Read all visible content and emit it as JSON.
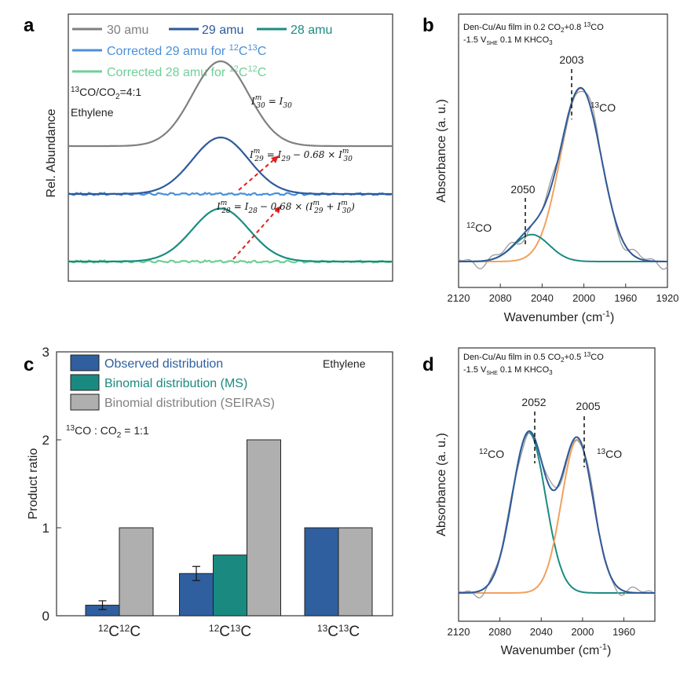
{
  "colors": {
    "gray": "#808080",
    "navy": "#2E5A9C",
    "teal": "#1B8C80",
    "lightblue": "#4A90D9",
    "lightgreen": "#6FCF97",
    "orange": "#F2A15C",
    "darkgreen": "#1E7A3C",
    "red": "#E02020",
    "bar_observed": "#2F5F9E",
    "bar_ms": "#1A8A80",
    "bar_seiras": "#AFAFAF"
  },
  "panel_a": {
    "letter": "a",
    "legend": {
      "amu30": "30 amu",
      "amu29": "29 amu",
      "amu28": "28 amu",
      "corr29": "Corrected 29 amu for ",
      "corr29_iso": "12C13C",
      "corr28": "Corrected 28 amu for ",
      "corr28_iso": "12C12C"
    },
    "ratio_text": "13CO/CO2=4:1",
    "ratio_sup": "13",
    "ratio_main": "CO/CO",
    "ratio_sub": "2",
    "ratio_tail": "=4:1",
    "product": "Ethylene",
    "ylabel": "Rel. Abundance",
    "eq30": "Iₘ₃₀ = I₃₀",
    "eq30_lhs": "I",
    "eq30_rhs": "= I",
    "eq29": "= I",
    "eq29_tail": "− 0.68 × I",
    "eq28": "= I",
    "eq28_tail": "− 0.68 × (I",
    "eq28_plus": "+ I",
    "eq_sup": "m",
    "sub30": "30",
    "sub29": "29",
    "sub28": "28"
  },
  "panel_b": {
    "letter": "b",
    "title_line1": "Den-Cu/Au film in 0.2 CO",
    "title_line1_sub": "2",
    "title_line1_tail": "+0.8 ",
    "title_line1_sup": "13",
    "title_line1_end": "CO",
    "title_line2_a": "-1.5 V",
    "title_line2_sub": "SHE",
    "title_line2_b": " 0.1 M KHCO",
    "title_line2_sub2": "3",
    "peak1": "2003",
    "peak2": "2050",
    "label_13co_sup": "13",
    "label_13co": "CO",
    "label_12co_sup": "12",
    "label_12co": "CO",
    "ylabel": "Absorbance (a. u.)",
    "xlabel": "Wavenumber (cm",
    "xlabel_sup": "-1",
    "xlabel_end": ")"
  },
  "panel_c": {
    "letter": "c",
    "legend": [
      "Observed distribution",
      "Binomial distribution (MS)",
      "Binomial distribution (SEIRAS)"
    ],
    "product": "Ethylene",
    "ratio_sup": "13",
    "ratio_main": "CO : CO",
    "ratio_sub": "2",
    "ratio_tail": " = 1:1",
    "ylabel": "Product  ratio",
    "cat_labels": [
      {
        "sup1": "12",
        "a": "C",
        "sup2": "12",
        "b": "C"
      },
      {
        "sup1": "12",
        "a": "C",
        "sup2": "13",
        "b": "C"
      },
      {
        "sup1": "13",
        "a": "C",
        "sup2": "13",
        "b": "C"
      }
    ]
  },
  "panel_d": {
    "letter": "d",
    "title_line1": "Den-Cu/Au film in 0.5 CO",
    "title_line1_sub": "2",
    "title_line1_tail": "+0.5 ",
    "title_line1_sup": "13",
    "title_line1_end": "CO",
    "title_line2_a": "-1.5 V",
    "title_line2_sub": "SHE",
    "title_line2_b": " 0.1 M KHCO",
    "title_line2_sub2": "3",
    "peak1": "2052",
    "peak2": "2005",
    "label_12co_sup": "12",
    "label_12co": "CO",
    "label_13co_sup": "13",
    "label_13co": "CO",
    "ylabel": "Absorbance (a. u.)",
    "xlabel": "Wavenumber (cm",
    "xlabel_sup": "-1",
    "xlabel_end": ")"
  },
  "chart_data": [
    {
      "panel": "a",
      "type": "line",
      "title": "",
      "ylabel": "Rel. Abundance",
      "axis_ticks_shown": false,
      "series": [
        {
          "name": "30 amu",
          "peak_height": 0.72,
          "baseline_offset": 2
        },
        {
          "name": "29 amu",
          "peak_height": 0.48,
          "baseline_offset": 1
        },
        {
          "name": "28 amu",
          "peak_height": 0.45,
          "baseline_offset": 0
        },
        {
          "name": "Corrected 29 amu for 12C13C",
          "peak_height": 0.0,
          "baseline_offset": 1
        },
        {
          "name": "Corrected 28 amu for 12C12C",
          "peak_height": 0.0,
          "baseline_offset": 0
        }
      ]
    },
    {
      "panel": "b",
      "type": "line",
      "xlabel": "Wavenumber (cm-1)",
      "ylabel": "Absorbance (a. u.)",
      "xlim": [
        2120,
        1920
      ],
      "xticks": [
        2120,
        2080,
        2040,
        2000,
        1960,
        1920
      ],
      "peaks": [
        {
          "name": "13CO",
          "center": 2003,
          "fwhm": 46,
          "height": 0.9
        },
        {
          "name": "12CO",
          "center": 2050,
          "fwhm": 40,
          "height": 0.14
        }
      ]
    },
    {
      "panel": "c",
      "type": "bar",
      "categories": [
        "12C12C",
        "12C13C",
        "13C13C"
      ],
      "ylabel": "Product  ratio",
      "ylim": [
        0,
        3
      ],
      "yticks": [
        0,
        1,
        2,
        3
      ],
      "series": [
        {
          "name": "Observed distribution",
          "values": [
            0.12,
            0.48,
            1.0
          ],
          "errors": [
            0.05,
            0.08,
            null
          ]
        },
        {
          "name": "Binomial distribution (MS)",
          "values": [
            null,
            0.69,
            null
          ]
        },
        {
          "name": "Binomial distribution (SEIRAS)",
          "values": [
            1.0,
            2.0,
            1.0
          ]
        }
      ]
    },
    {
      "panel": "d",
      "type": "line",
      "xlabel": "Wavenumber (cm-1)",
      "ylabel": "Absorbance (a. u.)",
      "xlim": [
        2120,
        1930
      ],
      "xticks": [
        2120,
        2080,
        2040,
        2000,
        1960
      ],
      "peaks": [
        {
          "name": "12CO",
          "center": 2052,
          "fwhm": 38,
          "height": 0.92
        },
        {
          "name": "13CO",
          "center": 2005,
          "fwhm": 36,
          "height": 0.88
        }
      ]
    }
  ]
}
